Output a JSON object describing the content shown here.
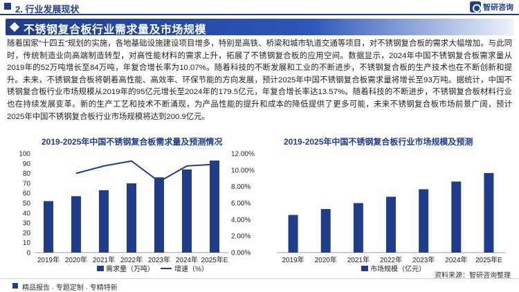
{
  "header": {
    "section": "2. 行业发展现状",
    "logo_text": "智研咨询"
  },
  "title": "不锈钢复合板行业需求量及市场规模",
  "paragraph": "随着国家“十四五”规划的实施，各地基础设施建设项目增多，特别是高铁、桥梁和城市轨道交通等项目，对不锈钢复合板的需求大幅增加。与此同时，传统制造业向高端制造转型，对高性能材料的需求上升，拓展了不锈钢复合板的应用空间。数据显示，2024年中国不锈钢复合板需求量从2019年的52万吨增长至84万吨，年复合增长率为10.07%。随着科技的不断发展和工业的不断进步，不锈钢复合板的生产技术也在不断创新和提升。未来，不锈钢复合板将朝着高性能、高效率、环保节能的方向发展，预计2025年中国不锈钢复合板需求量将增长至93万吨。据统计，中国不锈钢复合板行业市场规模从2019年的95亿元增长至2024年的179.5亿元，年复合增长率达13.57%。随着科技的不断进步，不锈钢复合板材料行业也在持续发展变革。新的生产工艺和技术不断涌现，为产品性能的提升和成本的降低提供了更多可能，未来不锈钢复合板市场前景广阔，预计2025年中国不锈钢复合板行业市场规模将达到200.9亿元。",
  "footer": {
    "left": "精品报告 · 专题定制 · 专精特新",
    "source": "资料来源：智研咨询整理"
  },
  "colors": {
    "primary": "#1f3d8a",
    "bar": "#1f3d8a",
    "line": "#1f3d8a"
  },
  "chart_data": [
    {
      "type": "bar+line",
      "title": "2019-2025年中国不锈钢复合板需求量及预测情况",
      "categories": [
        "2019年",
        "2020年",
        "2021年",
        "2022年",
        "2023年",
        "2024年",
        "2025年E"
      ],
      "series": [
        {
          "name": "需求量（万吨）",
          "type": "bar",
          "axis": "left",
          "values": [
            52,
            57,
            63,
            70,
            76,
            84,
            93
          ]
        },
        {
          "name": "增速（%）",
          "type": "line",
          "axis": "right",
          "values": [
            null,
            9.6,
            10.5,
            11.1,
            8.6,
            10.5,
            10.7
          ]
        }
      ],
      "ylim_left": [
        0,
        100
      ],
      "yticks_left": [
        "0",
        "10",
        "20",
        "30",
        "40",
        "50",
        "60",
        "70",
        "80",
        "90",
        "100"
      ],
      "ylim_right": [
        0,
        12
      ],
      "yticks_right": [
        "0.00%",
        "2.00%",
        "4.00%",
        "6.00%",
        "8.00%",
        "10.00%",
        "12.00%"
      ],
      "legend": "bottom",
      "grid": false
    },
    {
      "type": "bar",
      "title": "2019-2025年中国不锈钢复合板行业市场规模及预测",
      "categories": [
        "2019年",
        "2020年",
        "2021年",
        "2022年",
        "2023年",
        "2024年",
        "2025年E"
      ],
      "series": [
        {
          "name": "市场规模（亿元）",
          "type": "bar",
          "values": [
            95,
            110,
            125,
            141,
            160,
            179.5,
            200.9
          ]
        }
      ],
      "ylim": [
        0,
        250
      ],
      "legend": "bottom",
      "grid": false
    }
  ]
}
